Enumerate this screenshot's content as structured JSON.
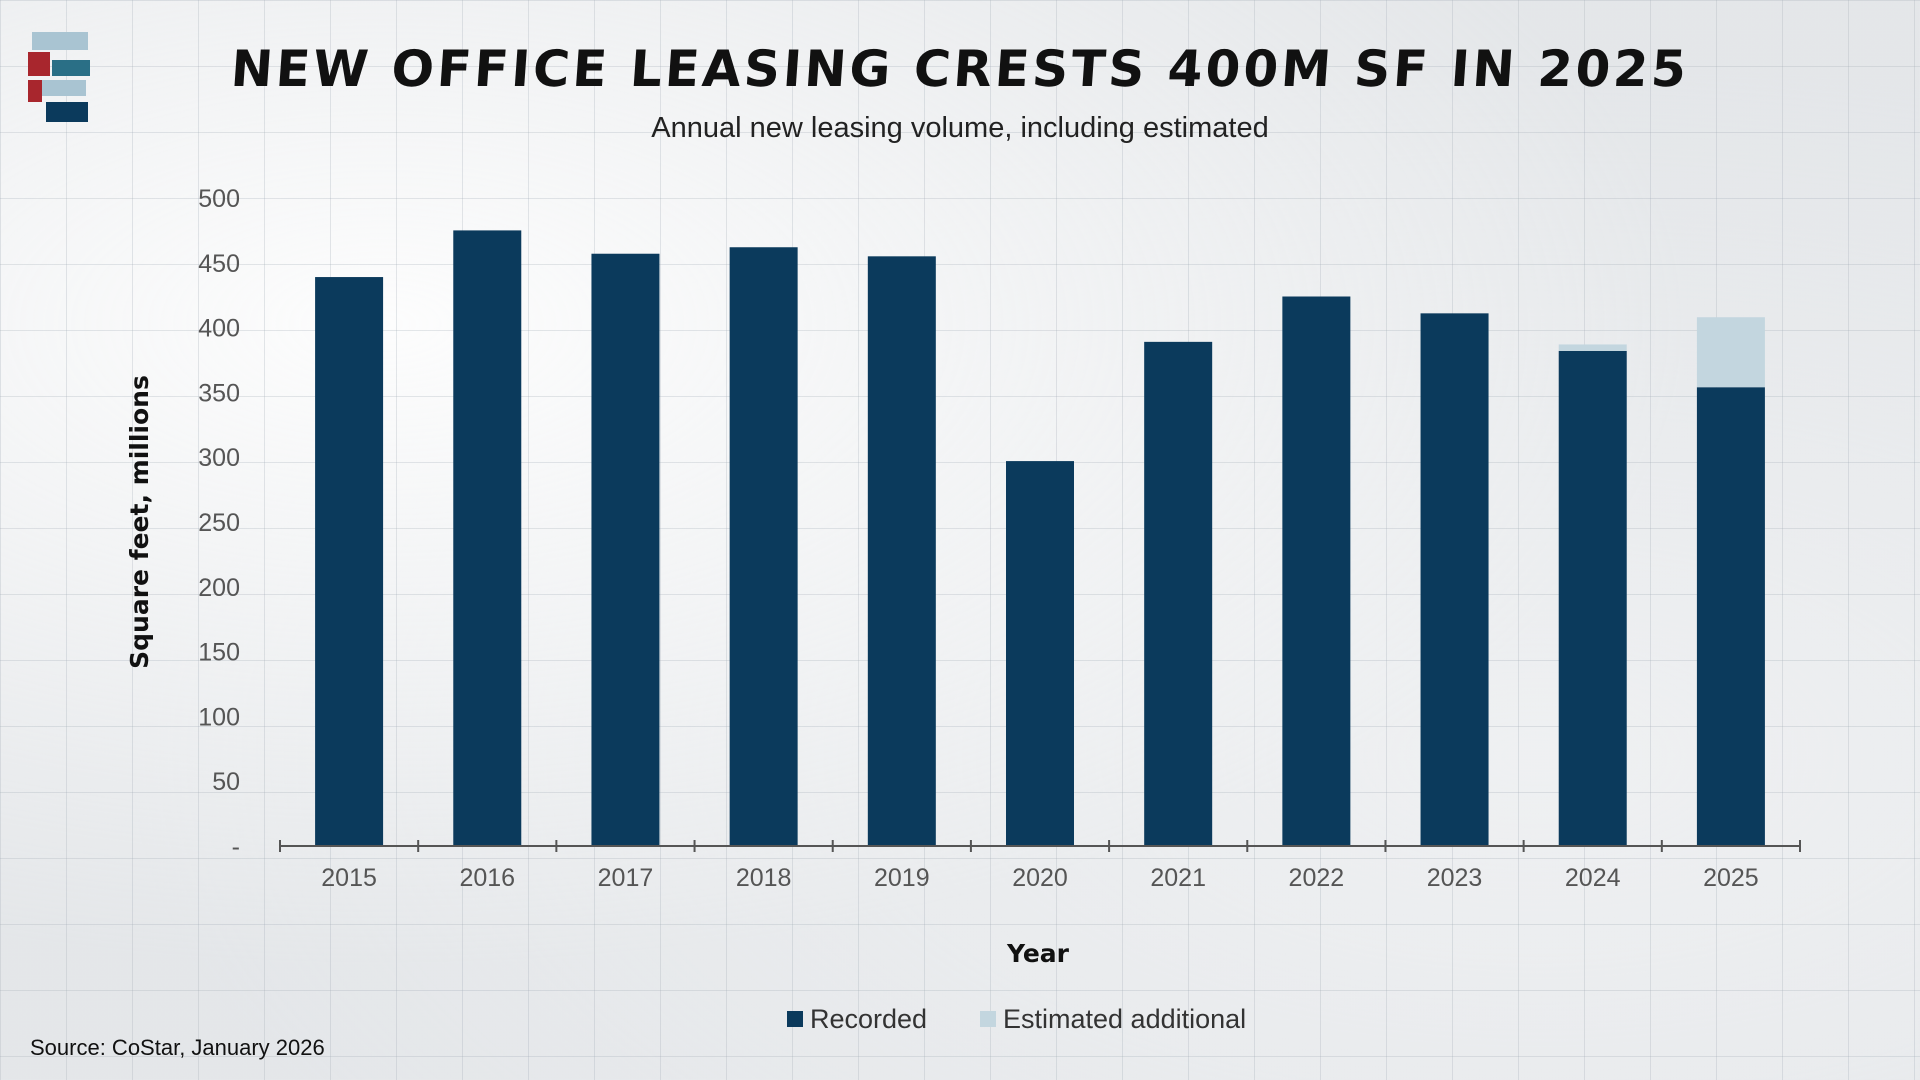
{
  "header": {
    "title": "NEW OFFICE LEASING CRESTS 400M SF IN 2025",
    "subtitle": "Annual new leasing volume, including estimated"
  },
  "footer": {
    "source": "Source: CoStar, January 2026"
  },
  "colors": {
    "recorded": "#0b3a5c",
    "estimated": "#c3d6df",
    "axis": "#555555",
    "logo_red": "#a8262d",
    "logo_light": "#a9c4d2",
    "logo_teal": "#2a6f86",
    "logo_navy": "#0b3a5c"
  },
  "chart_data": {
    "type": "bar",
    "stacked": true,
    "categories": [
      "2015",
      "2016",
      "2017",
      "2018",
      "2019",
      "2020",
      "2021",
      "2022",
      "2023",
      "2024",
      "2025"
    ],
    "series": [
      {
        "name": "Recorded",
        "values": [
          439,
          475,
          457,
          462,
          455,
          297,
          389,
          424,
          411,
          382,
          354
        ]
      },
      {
        "name": "Estimated additional",
        "values": [
          0,
          0,
          0,
          0,
          0,
          0,
          0,
          0,
          0,
          5,
          54
        ]
      }
    ],
    "xlabel": "Year",
    "ylabel": "Square feet, millions",
    "ylim": [
      0,
      500
    ],
    "yticks": [
      0,
      50,
      100,
      150,
      200,
      250,
      300,
      350,
      400,
      450,
      500
    ],
    "ytick_labels": [
      "-",
      "50",
      "100",
      "150",
      "200",
      "250",
      "300",
      "350",
      "400",
      "450",
      "500"
    ],
    "legend": {
      "position": "bottom",
      "labels": [
        "Recorded",
        "Estimated additional"
      ]
    }
  }
}
